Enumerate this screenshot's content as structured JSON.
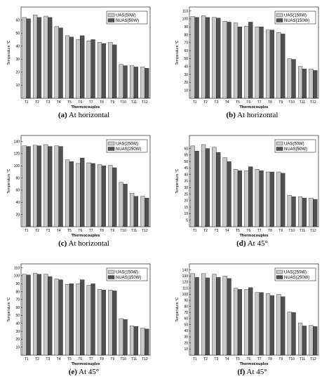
{
  "chart_data": [
    {
      "type": "bar",
      "categories": [
        "T1",
        "T2",
        "T3",
        "T4",
        "T5",
        "T6",
        "T7",
        "T8",
        "T9",
        "T10",
        "T11",
        "T12"
      ],
      "series": [
        {
          "name": "UAS(50W)",
          "values": [
            62,
            64,
            63,
            55,
            48,
            45,
            44,
            43,
            43,
            26,
            25,
            24
          ],
          "color": "#c8c8c8"
        },
        {
          "name": "NUAS(50W)",
          "values": [
            61,
            62,
            62,
            54,
            47,
            48,
            45,
            42,
            41,
            25,
            24,
            23
          ],
          "color": "#505050"
        }
      ],
      "xlabel": "Thermocouples",
      "ylabel": "Temperature °C",
      "ylim": [
        0,
        70
      ],
      "yticks": [
        10,
        20,
        30,
        40,
        50,
        60
      ],
      "legend": "top-right",
      "caption_letter": "(a)",
      "caption_text": "At horizontal"
    },
    {
      "type": "bar",
      "categories": [
        "T1",
        "T2",
        "T3",
        "T4",
        "T5",
        "T6",
        "T7",
        "T8",
        "T9",
        "T10",
        "T11",
        "T12"
      ],
      "series": [
        {
          "name": "UAS(150W)",
          "values": [
            103,
            104,
            102,
            97,
            95,
            91,
            90,
            86,
            83,
            50,
            40,
            37
          ],
          "color": "#c8c8c8"
        },
        {
          "name": "NUAS(150W)",
          "values": [
            102,
            102,
            101,
            96,
            90,
            96,
            90,
            86,
            81,
            49,
            37,
            35
          ],
          "color": "#505050"
        }
      ],
      "xlabel": "Thermocouples",
      "ylabel": "Temperature °C",
      "ylim": [
        0,
        115
      ],
      "yticks": [
        10,
        20,
        30,
        40,
        50,
        60,
        70,
        80,
        90,
        100,
        110
      ],
      "legend": "top-right",
      "caption_letter": "(b)",
      "caption_text": "At horizontal"
    },
    {
      "type": "bar",
      "categories": [
        "T1",
        "T2",
        "T3",
        "T4",
        "T5",
        "T6",
        "T7",
        "T8",
        "T9",
        "T10",
        "T11",
        "T12"
      ],
      "series": [
        {
          "name": "UAS(250W)",
          "values": [
            133,
            134,
            135,
            133,
            110,
            104,
            105,
            102,
            101,
            73,
            55,
            50
          ],
          "color": "#c8c8c8"
        },
        {
          "name": "NUAS(250W)",
          "values": [
            132,
            133,
            132,
            132,
            107,
            113,
            104,
            100,
            97,
            70,
            50,
            47
          ],
          "color": "#505050"
        }
      ],
      "xlabel": "Thermocouples",
      "ylabel": "Temperature °C",
      "ylim": [
        0,
        150
      ],
      "yticks": [
        20,
        40,
        60,
        80,
        100,
        120,
        140
      ],
      "legend": "top-right",
      "caption_letter": "(c)",
      "caption_text": "At horizontal"
    },
    {
      "type": "bar",
      "categories": [
        "T1",
        "T2",
        "T3",
        "T4",
        "T5",
        "T6",
        "T7",
        "T8",
        "T9",
        "T10",
        "T11",
        "T12"
      ],
      "series": [
        {
          "name": "UAS(50W)",
          "values": [
            62,
            63,
            61,
            53,
            44,
            43,
            44,
            42,
            42,
            24,
            23,
            22
          ],
          "color": "#c8c8c8"
        },
        {
          "name": "NUAS(50W)",
          "values": [
            58,
            60,
            57,
            50,
            43,
            46,
            43,
            42,
            41,
            23,
            22,
            21
          ],
          "color": "#505050"
        }
      ],
      "xlabel": "Thermocouples",
      "ylabel": "Temperature °C",
      "ylim": [
        0,
        70
      ],
      "yticks": [
        5,
        10,
        15,
        20,
        25,
        30,
        35,
        40,
        45,
        50,
        55,
        60
      ],
      "legend": "top-right",
      "caption_letter": "(d)",
      "caption_text": "At 45°"
    },
    {
      "type": "bar",
      "categories": [
        "T1",
        "T2",
        "T3",
        "T4",
        "T5",
        "T6",
        "T7",
        "T8",
        "T9",
        "T10",
        "T11",
        "T12"
      ],
      "series": [
        {
          "name": "UAS(150W)",
          "values": [
            102,
            103,
            102,
            96,
            89,
            90,
            88,
            83,
            82,
            46,
            37,
            34
          ],
          "color": "#c8c8c8"
        },
        {
          "name": "NUAS(150W)",
          "values": [
            101,
            102,
            99,
            95,
            90,
            95,
            90,
            82,
            81,
            45,
            36,
            33
          ],
          "color": "#505050"
        }
      ],
      "xlabel": "Thermocouples",
      "ylabel": "Temperature °C",
      "ylim": [
        0,
        115
      ],
      "yticks": [
        10,
        20,
        30,
        40,
        50,
        60,
        70,
        80,
        90,
        100,
        110
      ],
      "legend": "top-right",
      "caption_letter": "(e)",
      "caption_text": "At 45°"
    },
    {
      "type": "bar",
      "categories": [
        "T1",
        "T2",
        "T3",
        "T4",
        "T5",
        "T6",
        "T7",
        "T8",
        "T9",
        "T10",
        "T11",
        "T12"
      ],
      "series": [
        {
          "name": "UAS(250W)",
          "values": [
            134,
            134,
            133,
            130,
            110,
            108,
            103,
            101,
            100,
            71,
            53,
            49
          ],
          "color": "#c8c8c8"
        },
        {
          "name": "NUAS(250W)",
          "values": [
            128,
            127,
            128,
            126,
            108,
            111,
            103,
            98,
            96,
            70,
            48,
            47
          ],
          "color": "#505050"
        }
      ],
      "xlabel": "Thermocouples",
      "ylabel": "Temperature °C",
      "ylim": [
        0,
        150
      ],
      "yticks": [
        10,
        20,
        30,
        40,
        50,
        60,
        70,
        80,
        90,
        100,
        110,
        120,
        130,
        140
      ],
      "legend": "top-right",
      "caption_letter": "(f)",
      "caption_text": "At 45°"
    }
  ]
}
